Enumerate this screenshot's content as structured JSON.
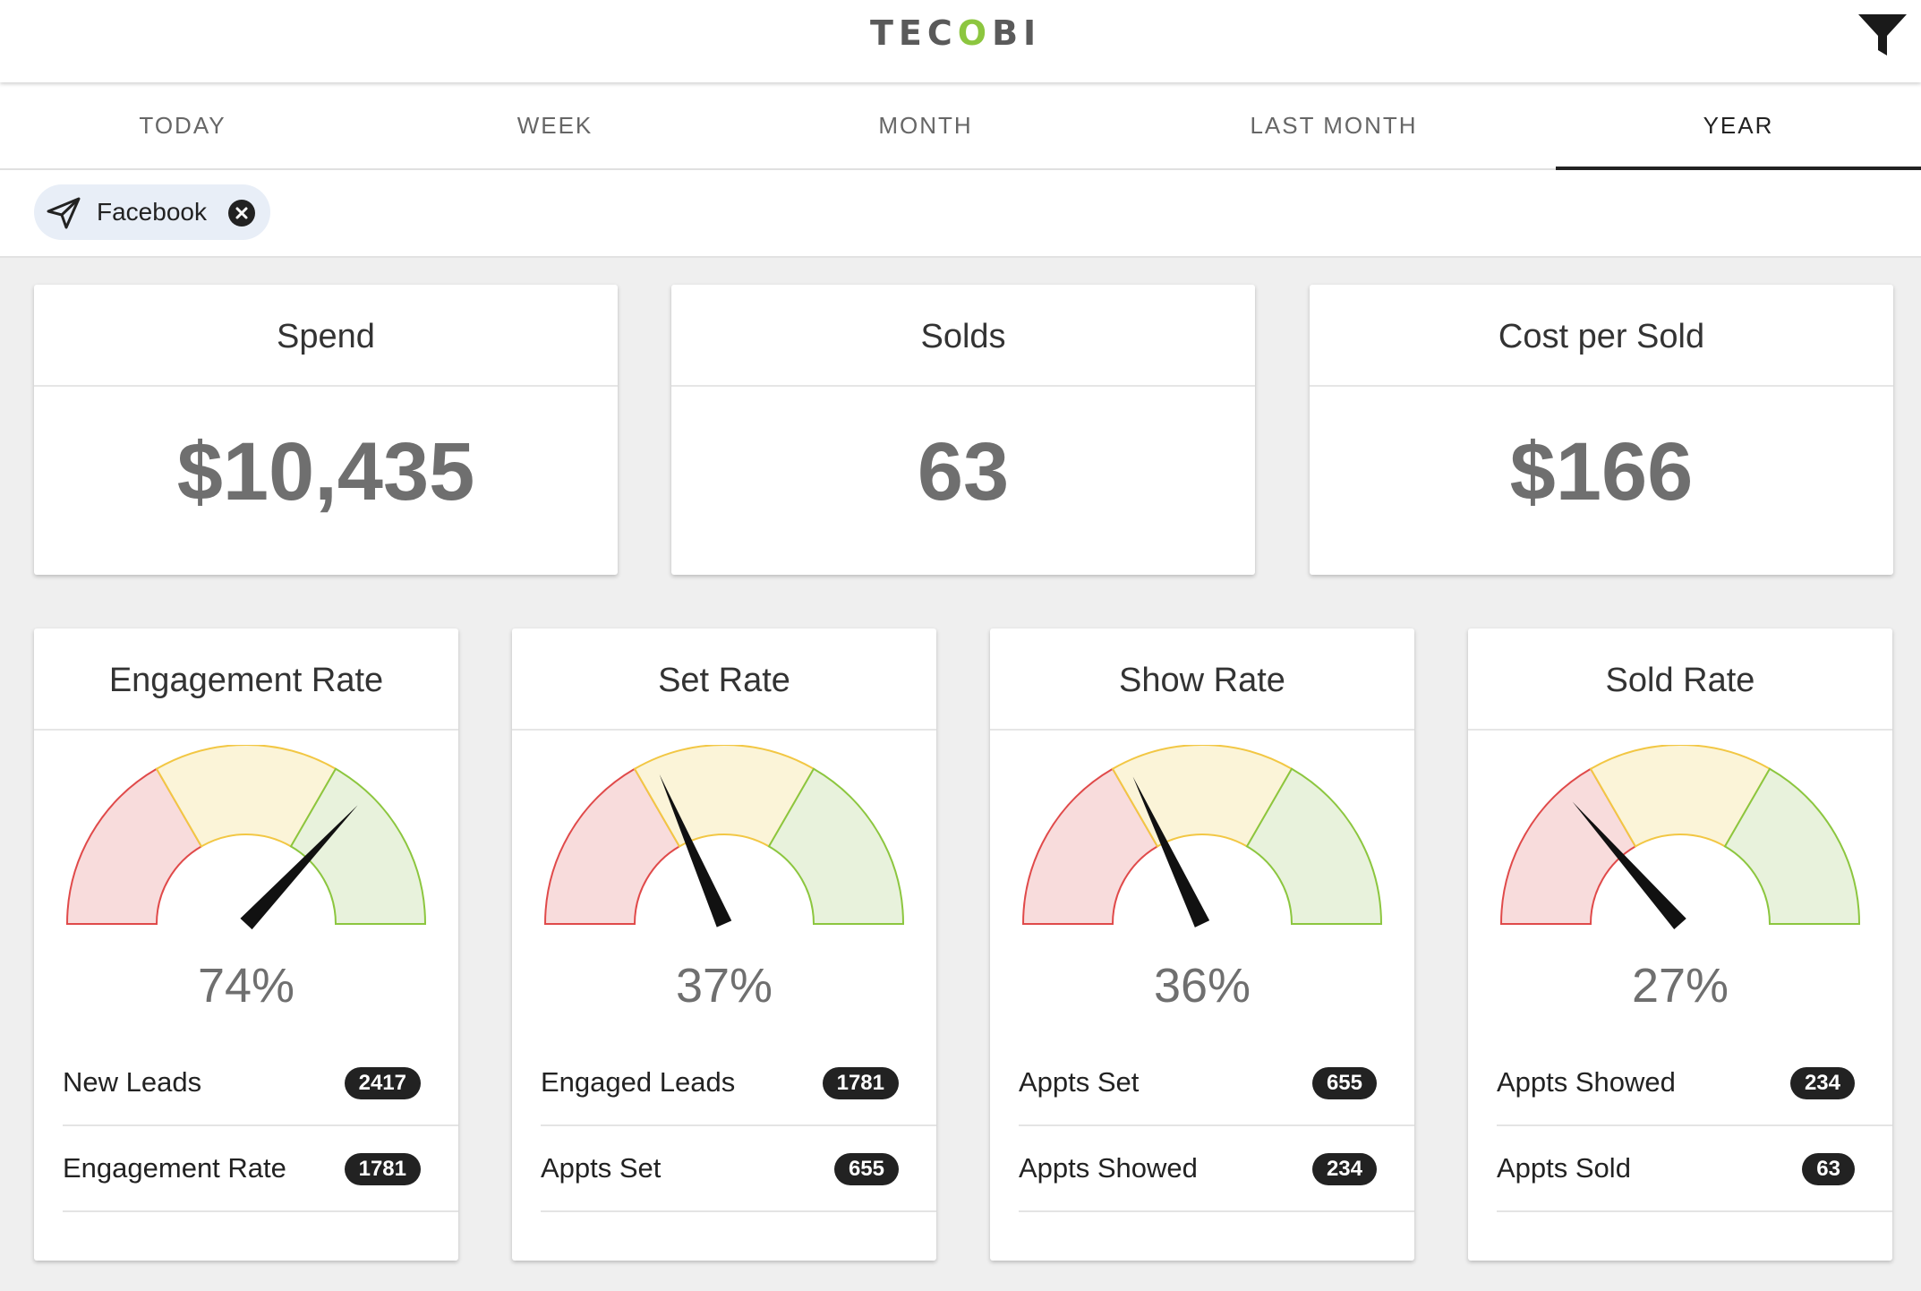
{
  "header": {
    "logo_text": "TEC",
    "logo_accent": "O",
    "logo_text_end": "BI",
    "filter_icon": "filter-icon"
  },
  "tabs": [
    {
      "label": "TODAY",
      "active": false
    },
    {
      "label": "WEEK",
      "active": false
    },
    {
      "label": "MONTH",
      "active": false
    },
    {
      "label": "LAST MONTH",
      "active": false
    },
    {
      "label": "YEAR",
      "active": true
    }
  ],
  "filter_chip": {
    "label": "Facebook",
    "icon": "send-icon",
    "close_icon": "close-icon"
  },
  "kpis": [
    {
      "title": "Spend",
      "value": "$10,435"
    },
    {
      "title": "Solds",
      "value": "63"
    },
    {
      "title": "Cost per Sold",
      "value": "$166"
    }
  ],
  "gauges": [
    {
      "title": "Engagement Rate",
      "percent_label": "74%",
      "value": 74,
      "rows": [
        {
          "label": "New Leads",
          "count": "2417"
        },
        {
          "label": "Engagement Rate",
          "count": "1781"
        }
      ]
    },
    {
      "title": "Set Rate",
      "percent_label": "37%",
      "value": 37,
      "rows": [
        {
          "label": "Engaged Leads",
          "count": "1781"
        },
        {
          "label": "Appts Set",
          "count": "655"
        }
      ]
    },
    {
      "title": "Show Rate",
      "percent_label": "36%",
      "value": 36,
      "rows": [
        {
          "label": "Appts Set",
          "count": "655"
        },
        {
          "label": "Appts Showed",
          "count": "234"
        }
      ]
    },
    {
      "title": "Sold Rate",
      "percent_label": "27%",
      "value": 27,
      "rows": [
        {
          "label": "Appts Showed",
          "count": "234"
        },
        {
          "label": "Appts Sold",
          "count": "63"
        }
      ]
    }
  ],
  "colors": {
    "logo_accent": "#8cc63f",
    "gauge_red_fill": "#f8dcdc",
    "gauge_red_stroke": "#e04a4a",
    "gauge_yellow_fill": "#fbf4d8",
    "gauge_yellow_stroke": "#f2c744",
    "gauge_green_fill": "#e8f2dc",
    "gauge_green_stroke": "#8cc63f",
    "needle": "#111111"
  }
}
